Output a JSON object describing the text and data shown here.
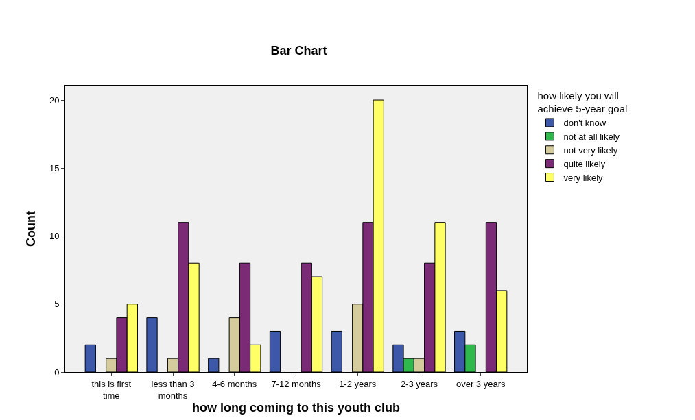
{
  "chart_data": {
    "type": "bar",
    "title": "Bar Chart",
    "xlabel": "how long coming to this youth club",
    "ylabel": "Count",
    "legend_title": "how likely you will achieve 5-year goal",
    "categories": [
      "this is first time",
      "less than 3 months",
      "4-6 months",
      "7-12 months",
      "1-2 years",
      "2-3 years",
      "over 3 years"
    ],
    "series": [
      {
        "name": "don't know",
        "color": "#3d58a8",
        "values": [
          2,
          4,
          1,
          3,
          3,
          2,
          3
        ]
      },
      {
        "name": "not at all likely",
        "color": "#2fb84c",
        "values": [
          null,
          null,
          null,
          null,
          null,
          1,
          2
        ]
      },
      {
        "name": "not very likely",
        "color": "#d4cc9c",
        "values": [
          1,
          1,
          4,
          null,
          5,
          1,
          null
        ]
      },
      {
        "name": "quite likely",
        "color": "#7b2a76",
        "values": [
          4,
          11,
          8,
          8,
          11,
          8,
          11
        ]
      },
      {
        "name": "very likely",
        "color": "#ffff66",
        "values": [
          5,
          8,
          2,
          7,
          20,
          11,
          6
        ]
      }
    ],
    "ylim": [
      0,
      21.06
    ],
    "yticks": [
      0,
      5,
      10,
      15,
      20
    ],
    "grid": false,
    "legend": "top right"
  }
}
